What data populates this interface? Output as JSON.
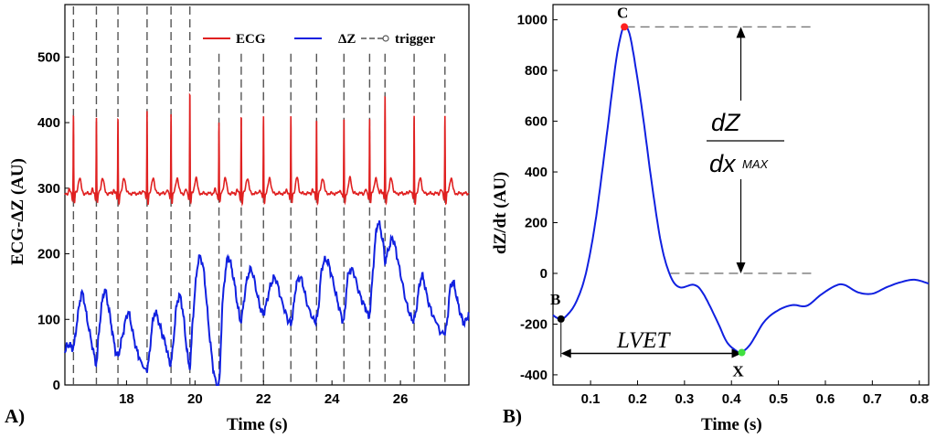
{
  "chart_data": [
    {
      "panel_label": "A)",
      "type": "line",
      "xlabel": "Time (s)",
      "ylabel": "ECG-ΔZ (AU)",
      "xlim": [
        16.2,
        28.0
      ],
      "ylim": [
        0,
        580
      ],
      "xticks": [
        18,
        20,
        22,
        24,
        26
      ],
      "yticks": [
        0,
        100,
        200,
        300,
        400,
        500
      ],
      "legend": [
        {
          "label": "ECG",
          "color": "#e02020"
        },
        {
          "label": "ΔZ",
          "color": "#1020e0"
        },
        {
          "label": "trigger",
          "color": "#555555"
        }
      ],
      "trigger_times": [
        16.45,
        17.12,
        17.75,
        18.6,
        19.3,
        19.85,
        20.7,
        21.35,
        22.0,
        22.8,
        23.55,
        24.35,
        25.1,
        25.55,
        26.4,
        27.3
      ],
      "ecg": {
        "baseline": 292,
        "r_peaks": [
          {
            "t": 16.45,
            "v": 415
          },
          {
            "t": 17.12,
            "v": 410
          },
          {
            "t": 17.75,
            "v": 410
          },
          {
            "t": 18.6,
            "v": 418
          },
          {
            "t": 19.3,
            "v": 415
          },
          {
            "t": 19.85,
            "v": 450
          },
          {
            "t": 20.7,
            "v": 403
          },
          {
            "t": 21.35,
            "v": 413
          },
          {
            "t": 22.0,
            "v": 412
          },
          {
            "t": 22.8,
            "v": 408
          },
          {
            "t": 23.55,
            "v": 408
          },
          {
            "t": 24.35,
            "v": 410
          },
          {
            "t": 25.1,
            "v": 408
          },
          {
            "t": 25.55,
            "v": 445
          },
          {
            "t": 26.4,
            "v": 410
          },
          {
            "t": 27.3,
            "v": 412
          }
        ]
      },
      "dz": {
        "points": [
          [
            16.2,
            50
          ],
          [
            16.3,
            62
          ],
          [
            16.45,
            58
          ],
          [
            16.55,
            95
          ],
          [
            16.7,
            140
          ],
          [
            16.85,
            100
          ],
          [
            17.0,
            60
          ],
          [
            17.12,
            35
          ],
          [
            17.2,
            85
          ],
          [
            17.35,
            143
          ],
          [
            17.5,
            110
          ],
          [
            17.65,
            60
          ],
          [
            17.75,
            45
          ],
          [
            17.9,
            80
          ],
          [
            18.05,
            110
          ],
          [
            18.2,
            75
          ],
          [
            18.35,
            45
          ],
          [
            18.6,
            25
          ],
          [
            18.75,
            90
          ],
          [
            18.85,
            110
          ],
          [
            19.0,
            85
          ],
          [
            19.15,
            60
          ],
          [
            19.3,
            35
          ],
          [
            19.45,
            115
          ],
          [
            19.55,
            135
          ],
          [
            19.65,
            110
          ],
          [
            19.75,
            60
          ],
          [
            19.85,
            30
          ],
          [
            19.95,
            110
          ],
          [
            20.1,
            190
          ],
          [
            20.25,
            175
          ],
          [
            20.4,
            90
          ],
          [
            20.55,
            20
          ],
          [
            20.7,
            0
          ],
          [
            20.8,
            120
          ],
          [
            20.95,
            192
          ],
          [
            21.1,
            170
          ],
          [
            21.25,
            120
          ],
          [
            21.35,
            100
          ],
          [
            21.5,
            155
          ],
          [
            21.65,
            175
          ],
          [
            21.85,
            130
          ],
          [
            22.0,
            110
          ],
          [
            22.2,
            150
          ],
          [
            22.35,
            162
          ],
          [
            22.55,
            125
          ],
          [
            22.8,
            95
          ],
          [
            22.95,
            150
          ],
          [
            23.1,
            162
          ],
          [
            23.3,
            120
          ],
          [
            23.55,
            100
          ],
          [
            23.7,
            175
          ],
          [
            23.85,
            190
          ],
          [
            24.0,
            165
          ],
          [
            24.2,
            120
          ],
          [
            24.35,
            100
          ],
          [
            24.45,
            160
          ],
          [
            24.6,
            175
          ],
          [
            24.8,
            140
          ],
          [
            25.0,
            115
          ],
          [
            25.1,
            110
          ],
          [
            25.25,
            210
          ],
          [
            25.35,
            247
          ],
          [
            25.5,
            215
          ],
          [
            25.55,
            190
          ],
          [
            25.7,
            215
          ],
          [
            25.8,
            220
          ],
          [
            26.0,
            170
          ],
          [
            26.2,
            120
          ],
          [
            26.4,
            100
          ],
          [
            26.55,
            150
          ],
          [
            26.65,
            165
          ],
          [
            26.8,
            130
          ],
          [
            27.0,
            100
          ],
          [
            27.3,
            80
          ],
          [
            27.45,
            145
          ],
          [
            27.55,
            155
          ],
          [
            27.7,
            120
          ],
          [
            27.85,
            95
          ],
          [
            28.0,
            110
          ]
        ]
      }
    },
    {
      "panel_label": "B)",
      "type": "line",
      "xlabel": "Time (s)",
      "ylabel": "dZ/dt (AU)",
      "xlim": [
        0.02,
        0.82
      ],
      "ylim": [
        -440,
        1060
      ],
      "xticks": [
        0.1,
        0.2,
        0.3,
        0.4,
        0.5,
        0.6,
        0.7,
        0.8
      ],
      "yticks": [
        -400,
        -200,
        0,
        200,
        400,
        600,
        800,
        1000
      ],
      "curve": [
        [
          0.02,
          -165
        ],
        [
          0.035,
          -180
        ],
        [
          0.05,
          -165
        ],
        [
          0.07,
          -110
        ],
        [
          0.09,
          0
        ],
        [
          0.11,
          200
        ],
        [
          0.13,
          480
        ],
        [
          0.15,
          780
        ],
        [
          0.16,
          900
        ],
        [
          0.17,
          970
        ],
        [
          0.18,
          960
        ],
        [
          0.19,
          880
        ],
        [
          0.21,
          640
        ],
        [
          0.23,
          360
        ],
        [
          0.25,
          120
        ],
        [
          0.27,
          -10
        ],
        [
          0.29,
          -55
        ],
        [
          0.32,
          -45
        ],
        [
          0.34,
          -80
        ],
        [
          0.37,
          -190
        ],
        [
          0.39,
          -270
        ],
        [
          0.41,
          -305
        ],
        [
          0.42,
          -312
        ],
        [
          0.44,
          -280
        ],
        [
          0.47,
          -190
        ],
        [
          0.5,
          -145
        ],
        [
          0.53,
          -125
        ],
        [
          0.56,
          -128
        ],
        [
          0.59,
          -85
        ],
        [
          0.62,
          -50
        ],
        [
          0.64,
          -45
        ],
        [
          0.67,
          -75
        ],
        [
          0.7,
          -80
        ],
        [
          0.73,
          -55
        ],
        [
          0.76,
          -35
        ],
        [
          0.79,
          -25
        ],
        [
          0.82,
          -40
        ]
      ],
      "markers": [
        {
          "label": "B",
          "t": 0.037,
          "v": -180,
          "color": "#000000"
        },
        {
          "label": "C",
          "t": 0.172,
          "v": 972,
          "color": "#ff2020"
        },
        {
          "label": "X",
          "t": 0.422,
          "v": -312,
          "color": "#40e040"
        }
      ],
      "annotations": {
        "dzdx_numerator": "dZ",
        "dzdx_denominator": "dx",
        "dzdx_subscript": "MAX",
        "lvet": "LVET"
      }
    }
  ]
}
